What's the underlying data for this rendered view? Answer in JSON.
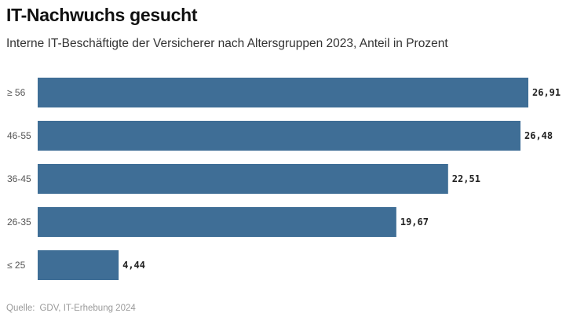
{
  "header": {
    "title": "IT-Nachwuchs gesucht",
    "subtitle": "Interne IT-Beschäftigte der Versicherer nach Altersgruppen 2023, Anteil in Prozent"
  },
  "footer": {
    "source_label": "Quelle:",
    "source_text": "GDV, IT-Erhebung 2024"
  },
  "colors": {
    "bar": "#3f6e96"
  },
  "chart_data": {
    "type": "bar",
    "orientation": "horizontal",
    "title": "IT-Nachwuchs gesucht",
    "subtitle": "Interne IT-Beschäftigte der Versicherer nach Altersgruppen 2023, Anteil in Prozent",
    "categories": [
      "≥ 56",
      "46-55",
      "36-45",
      "26-35",
      "≤ 25"
    ],
    "values": [
      26.91,
      26.48,
      22.51,
      19.67,
      4.44
    ],
    "value_labels": [
      "26,91",
      "26,48",
      "22,51",
      "19,67",
      "4,44"
    ],
    "xlim": [
      0,
      26.91
    ],
    "grid": false,
    "legend": "none"
  }
}
